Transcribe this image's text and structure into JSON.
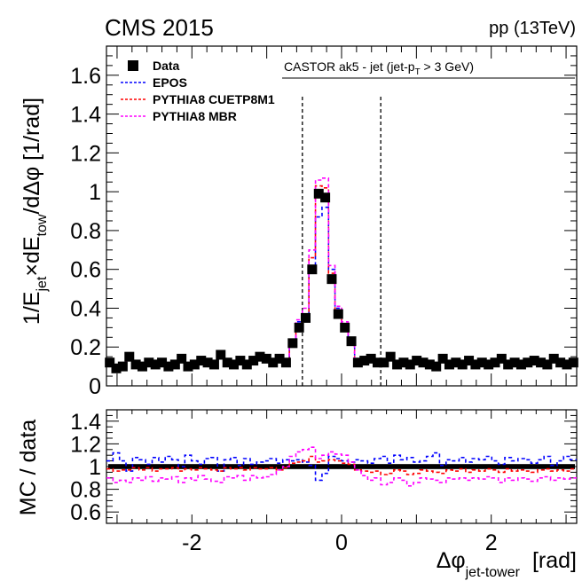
{
  "header": {
    "experiment": "CMS 2015",
    "collision": "pp (13TeV)"
  },
  "chart_data": [
    {
      "type": "line",
      "panel": "main",
      "title": "",
      "ylabel": "1/E_jet × dE_tow /dΔφ [1/rad]",
      "ylabel_parts": {
        "a": "1/E",
        "a_sub": "jet",
        "b": "×dE",
        "b_sub": "tow",
        "c": "/dΔφ [1/rad]"
      },
      "xlim": [
        -3.1416,
        3.1416
      ],
      "ylim": [
        0,
        1.75
      ],
      "yticks": [
        0,
        0.2,
        0.4,
        0.6,
        0.8,
        1,
        1.2,
        1.4,
        1.6
      ],
      "ytick_labels": [
        "0",
        "0.2",
        "0.4",
        "0.6",
        "0.8",
        "1",
        "1.2",
        "1.4",
        "1.6"
      ],
      "annotation": {
        "text": "CASTOR ak5 - jet (jet-p",
        "sub": "T",
        "tail": " > 3 GeV)"
      },
      "vlines": [
        -0.5236,
        0.5236
      ],
      "legend": [
        {
          "label": "Data",
          "style": "marker",
          "color": "#000000"
        },
        {
          "label": "EPOS",
          "style": "dash",
          "color": "#0000ff"
        },
        {
          "label": "PYTHIA8 CUETP8M1",
          "style": "dash",
          "color": "#ff0000"
        },
        {
          "label": "PYTHIA8 MBR",
          "style": "dash",
          "color": "#ff00ff"
        }
      ],
      "bin_width": 0.0873,
      "bin_centers": [
        -3.098,
        -3.011,
        -2.924,
        -2.836,
        -2.749,
        -2.662,
        -2.575,
        -2.487,
        -2.4,
        -2.313,
        -2.225,
        -2.138,
        -2.051,
        -1.964,
        -1.876,
        -1.789,
        -1.702,
        -1.615,
        -1.527,
        -1.44,
        -1.353,
        -1.265,
        -1.178,
        -1.091,
        -1.004,
        -0.916,
        -0.829,
        -0.742,
        -0.654,
        -0.567,
        -0.48,
        -0.393,
        -0.305,
        -0.218,
        -0.131,
        -0.044,
        0.044,
        0.131,
        0.218,
        0.305,
        0.393,
        0.48,
        0.567,
        0.654,
        0.742,
        0.829,
        0.916,
        1.004,
        1.091,
        1.178,
        1.265,
        1.353,
        1.44,
        1.527,
        1.615,
        1.702,
        1.789,
        1.876,
        1.964,
        2.051,
        2.138,
        2.225,
        2.313,
        2.4,
        2.487,
        2.575,
        2.662,
        2.749,
        2.836,
        2.924,
        3.011,
        3.098
      ],
      "series": [
        {
          "name": "Data",
          "values": [
            0.12,
            0.09,
            0.1,
            0.15,
            0.11,
            0.1,
            0.12,
            0.11,
            0.12,
            0.1,
            0.11,
            0.14,
            0.1,
            0.11,
            0.13,
            0.12,
            0.11,
            0.16,
            0.12,
            0.11,
            0.13,
            0.11,
            0.13,
            0.15,
            0.14,
            0.12,
            0.14,
            0.12,
            0.22,
            0.3,
            0.35,
            0.6,
            0.99,
            0.97,
            0.55,
            0.37,
            0.3,
            0.23,
            0.12,
            0.13,
            0.14,
            0.12,
            0.12,
            0.15,
            0.11,
            0.12,
            0.11,
            0.13,
            0.12,
            0.11,
            0.1,
            0.14,
            0.11,
            0.12,
            0.11,
            0.13,
            0.11,
            0.12,
            0.11,
            0.12,
            0.14,
            0.11,
            0.12,
            0.11,
            0.12,
            0.13,
            0.12,
            0.11,
            0.14,
            0.12,
            0.11,
            0.12
          ]
        },
        {
          "name": "EPOS",
          "values": [
            0.13,
            0.1,
            0.11,
            0.14,
            0.12,
            0.11,
            0.12,
            0.12,
            0.13,
            0.11,
            0.12,
            0.14,
            0.11,
            0.12,
            0.13,
            0.13,
            0.12,
            0.15,
            0.13,
            0.12,
            0.13,
            0.12,
            0.13,
            0.16,
            0.15,
            0.13,
            0.15,
            0.13,
            0.24,
            0.33,
            0.37,
            0.62,
            0.87,
            0.92,
            0.6,
            0.4,
            0.32,
            0.24,
            0.13,
            0.14,
            0.15,
            0.13,
            0.13,
            0.16,
            0.12,
            0.13,
            0.12,
            0.14,
            0.13,
            0.12,
            0.11,
            0.14,
            0.12,
            0.13,
            0.12,
            0.14,
            0.12,
            0.13,
            0.12,
            0.13,
            0.14,
            0.12,
            0.13,
            0.12,
            0.13,
            0.14,
            0.13,
            0.12,
            0.14,
            0.13,
            0.12,
            0.13
          ]
        },
        {
          "name": "PYTHIA8 CUETP8M1",
          "values": [
            0.12,
            0.09,
            0.1,
            0.14,
            0.11,
            0.1,
            0.12,
            0.11,
            0.12,
            0.1,
            0.11,
            0.13,
            0.1,
            0.11,
            0.13,
            0.12,
            0.11,
            0.15,
            0.12,
            0.11,
            0.13,
            0.11,
            0.13,
            0.15,
            0.14,
            0.12,
            0.14,
            0.12,
            0.23,
            0.31,
            0.37,
            0.66,
            1.03,
            1.02,
            0.58,
            0.39,
            0.31,
            0.23,
            0.12,
            0.13,
            0.13,
            0.12,
            0.11,
            0.14,
            0.11,
            0.12,
            0.1,
            0.12,
            0.12,
            0.11,
            0.1,
            0.13,
            0.11,
            0.12,
            0.11,
            0.13,
            0.11,
            0.12,
            0.11,
            0.12,
            0.13,
            0.11,
            0.12,
            0.11,
            0.12,
            0.13,
            0.12,
            0.11,
            0.14,
            0.12,
            0.11,
            0.12
          ]
        },
        {
          "name": "PYTHIA8 MBR",
          "values": [
            0.11,
            0.08,
            0.09,
            0.13,
            0.1,
            0.09,
            0.11,
            0.1,
            0.11,
            0.09,
            0.1,
            0.12,
            0.09,
            0.1,
            0.12,
            0.11,
            0.1,
            0.14,
            0.11,
            0.1,
            0.12,
            0.1,
            0.12,
            0.14,
            0.13,
            0.11,
            0.14,
            0.12,
            0.24,
            0.34,
            0.4,
            0.7,
            1.06,
            1.07,
            0.62,
            0.41,
            0.33,
            0.24,
            0.12,
            0.12,
            0.12,
            0.11,
            0.1,
            0.13,
            0.1,
            0.11,
            0.09,
            0.11,
            0.11,
            0.1,
            0.09,
            0.12,
            0.1,
            0.11,
            0.1,
            0.12,
            0.1,
            0.11,
            0.1,
            0.11,
            0.12,
            0.1,
            0.11,
            0.1,
            0.11,
            0.12,
            0.11,
            0.1,
            0.13,
            0.11,
            0.1,
            0.11
          ]
        }
      ]
    },
    {
      "type": "line",
      "panel": "ratio",
      "ylabel": "MC / data",
      "xlabel": "Δφ jet-tower [rad]",
      "xlabel_parts": {
        "sym": "Δφ",
        "sub": "jet-tower",
        "unit": "[rad]"
      },
      "xlim": [
        -3.1416,
        3.1416
      ],
      "ylim": [
        0.5,
        1.5
      ],
      "xticks": [
        -2,
        0,
        2
      ],
      "xtick_labels": [
        "-2",
        "0",
        "2"
      ],
      "yticks": [
        0.6,
        0.8,
        1,
        1.2,
        1.4
      ],
      "ytick_labels": [
        "0.6",
        "0.8",
        "1",
        "1.2",
        "1.4"
      ],
      "band": {
        "center": 1.0,
        "half_width": 0.022,
        "color": "#000000"
      },
      "series": [
        {
          "name": "EPOS",
          "values": [
            1.05,
            1.12,
            1.05,
            0.96,
            1.08,
            1.06,
            1.02,
            1.08,
            1.04,
            1.09,
            1.06,
            1.0,
            1.1,
            1.05,
            1.02,
            1.07,
            1.08,
            0.96,
            1.06,
            1.08,
            1.01,
            1.07,
            1.02,
            1.04,
            1.05,
            1.07,
            1.03,
            1.06,
            1.05,
            1.06,
            1.04,
            1.01,
            0.88,
            0.94,
            1.09,
            1.07,
            1.05,
            1.04,
            1.06,
            1.05,
            1.03,
            1.07,
            1.09,
            1.03,
            1.1,
            1.06,
            1.08,
            1.04,
            1.05,
            1.09,
            1.12,
            1.01,
            1.06,
            1.05,
            1.08,
            1.04,
            1.07,
            1.06,
            1.09,
            1.05,
            1.02,
            1.08,
            1.05,
            1.07,
            1.06,
            1.03,
            1.06,
            1.09,
            1.01,
            1.05,
            1.09,
            1.06
          ]
        },
        {
          "name": "PYTHIA8 CUETP8M1",
          "values": [
            0.98,
            0.96,
            0.97,
            0.97,
            0.99,
            0.97,
            0.99,
            0.96,
            0.98,
            0.98,
            0.99,
            0.96,
            0.98,
            0.97,
            0.99,
            0.98,
            0.97,
            0.96,
            0.99,
            0.98,
            0.99,
            0.97,
            0.99,
            0.98,
            0.98,
            0.99,
            0.97,
            0.99,
            1.03,
            1.04,
            1.05,
            1.09,
            1.04,
            1.05,
            1.06,
            1.05,
            1.03,
            1.02,
            0.97,
            0.96,
            0.95,
            0.96,
            0.93,
            0.94,
            0.97,
            0.96,
            0.93,
            0.94,
            0.97,
            0.96,
            0.95,
            0.94,
            0.97,
            0.96,
            0.98,
            0.95,
            0.97,
            0.96,
            0.98,
            0.97,
            0.95,
            0.98,
            0.96,
            0.97,
            0.96,
            0.95,
            0.97,
            0.98,
            0.96,
            0.97,
            0.96,
            0.98
          ]
        },
        {
          "name": "PYTHIA8 MBR",
          "values": [
            0.9,
            0.86,
            0.88,
            0.86,
            0.9,
            0.88,
            0.91,
            0.87,
            0.9,
            0.89,
            0.91,
            0.86,
            0.9,
            0.88,
            0.92,
            0.89,
            0.87,
            0.86,
            0.91,
            0.9,
            0.92,
            0.88,
            0.92,
            0.9,
            0.91,
            0.93,
            0.97,
            1.0,
            1.09,
            1.13,
            1.15,
            1.17,
            1.07,
            1.1,
            1.13,
            1.11,
            1.1,
            1.04,
            0.97,
            0.92,
            0.88,
            0.9,
            0.84,
            0.86,
            0.9,
            0.88,
            0.83,
            0.86,
            0.9,
            0.89,
            0.88,
            0.86,
            0.9,
            0.89,
            0.9,
            0.88,
            0.9,
            0.89,
            0.91,
            0.9,
            0.86,
            0.9,
            0.88,
            0.9,
            0.89,
            0.87,
            0.9,
            0.91,
            0.88,
            0.9,
            0.89,
            0.9
          ]
        }
      ]
    }
  ]
}
